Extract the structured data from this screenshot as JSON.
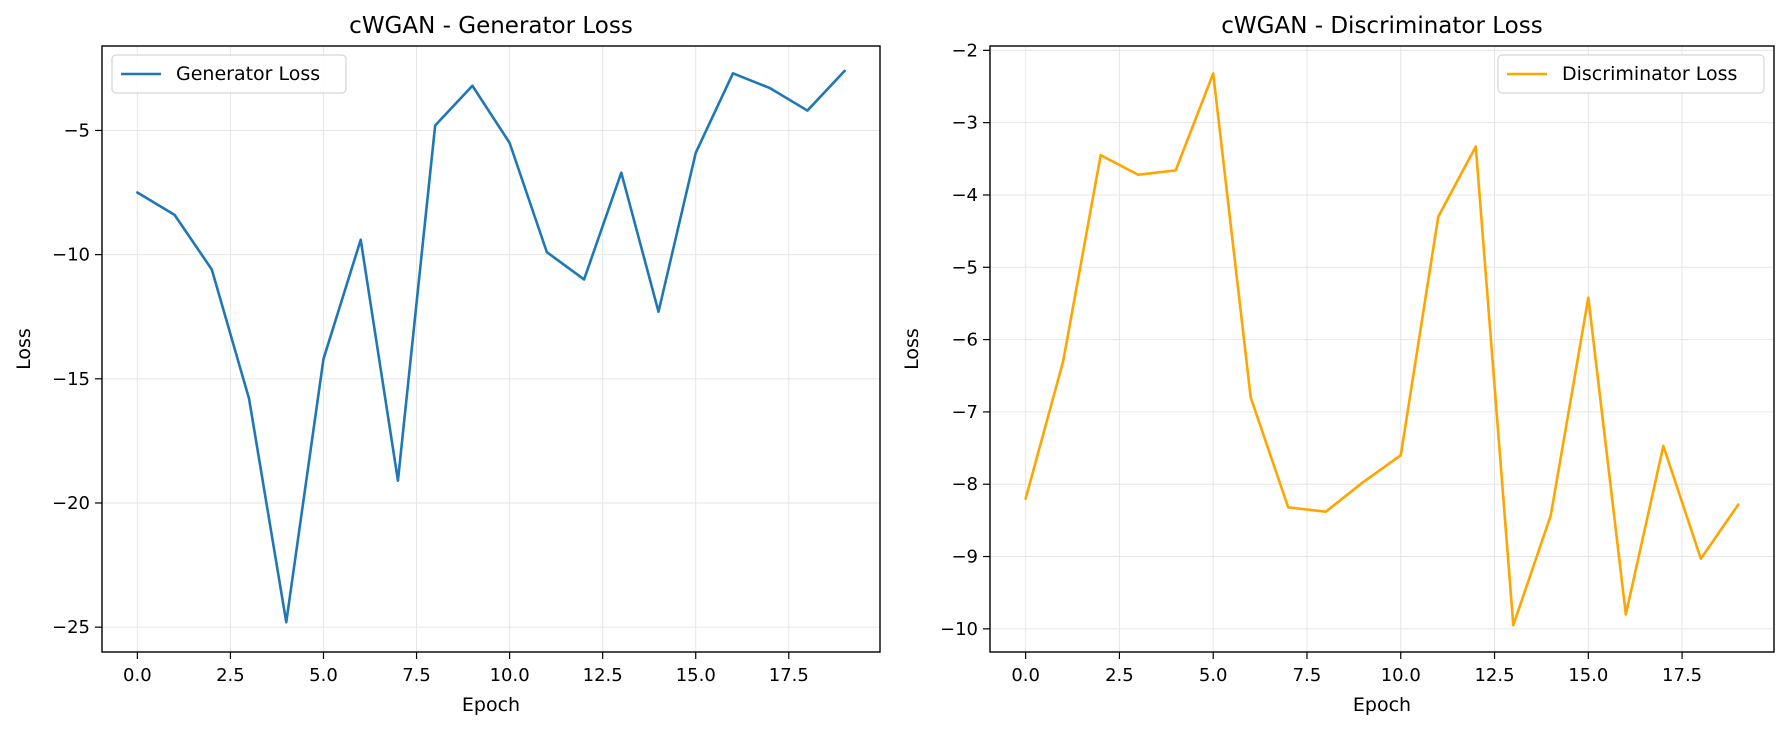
{
  "chart_data": [
    {
      "type": "line",
      "title": "cWGAN - Generator Loss",
      "xlabel": "Epoch",
      "ylabel": "Loss",
      "xlim": [
        -0.95,
        19.95
      ],
      "ylim": [
        -26.0,
        -1.6
      ],
      "xticks": [
        0,
        2.5,
        5,
        7.5,
        10,
        12.5,
        15,
        17.5
      ],
      "xtick_labels": [
        "0.0",
        "2.5",
        "5.0",
        "7.5",
        "10.0",
        "12.5",
        "15.0",
        "17.5"
      ],
      "yticks": [
        -25,
        -20,
        -15,
        -10,
        -5
      ],
      "ytick_labels": [
        "−25",
        "−20",
        "−15",
        "−10",
        "−5"
      ],
      "grid": true,
      "legend_position": "upper-left",
      "series": [
        {
          "name": "Generator Loss",
          "color": "#1f77b4",
          "x": [
            0,
            1,
            2,
            3,
            4,
            5,
            6,
            7,
            8,
            9,
            10,
            11,
            12,
            13,
            14,
            15,
            16,
            17,
            18,
            19
          ],
          "values": [
            -7.5,
            -8.4,
            -10.6,
            -15.8,
            -24.8,
            -14.2,
            -9.4,
            -19.1,
            -4.8,
            -3.2,
            -5.5,
            -9.9,
            -11.0,
            -6.7,
            -12.3,
            -5.9,
            -2.7,
            -3.3,
            -4.2,
            -2.6
          ]
        }
      ]
    },
    {
      "type": "line",
      "title": "cWGAN - Discriminator Loss",
      "xlabel": "Epoch",
      "ylabel": "Loss",
      "xlim": [
        -0.95,
        19.95
      ],
      "ylim": [
        -10.32,
        -1.94
      ],
      "xticks": [
        0,
        2.5,
        5,
        7.5,
        10,
        12.5,
        15,
        17.5
      ],
      "xtick_labels": [
        "0.0",
        "2.5",
        "5.0",
        "7.5",
        "10.0",
        "12.5",
        "15.0",
        "17.5"
      ],
      "yticks": [
        -10,
        -9,
        -8,
        -7,
        -6,
        -5,
        -4,
        -3,
        -2
      ],
      "ytick_labels": [
        "−10",
        "−9",
        "−8",
        "−7",
        "−6",
        "−5",
        "−4",
        "−3",
        "−2"
      ],
      "grid": true,
      "legend_position": "upper-right",
      "series": [
        {
          "name": "Discriminator Loss",
          "color": "#ffa500",
          "x": [
            0,
            1,
            2,
            3,
            4,
            5,
            6,
            7,
            8,
            9,
            10,
            11,
            12,
            13,
            14,
            15,
            16,
            17,
            18,
            19
          ],
          "values": [
            -8.2,
            -6.3,
            -3.45,
            -3.72,
            -3.66,
            -2.32,
            -6.8,
            -8.32,
            -8.38,
            -7.97,
            -7.6,
            -4.3,
            -3.33,
            -9.95,
            -8.43,
            -5.42,
            -9.8,
            -7.47,
            -9.03,
            -8.28
          ]
        }
      ]
    }
  ]
}
